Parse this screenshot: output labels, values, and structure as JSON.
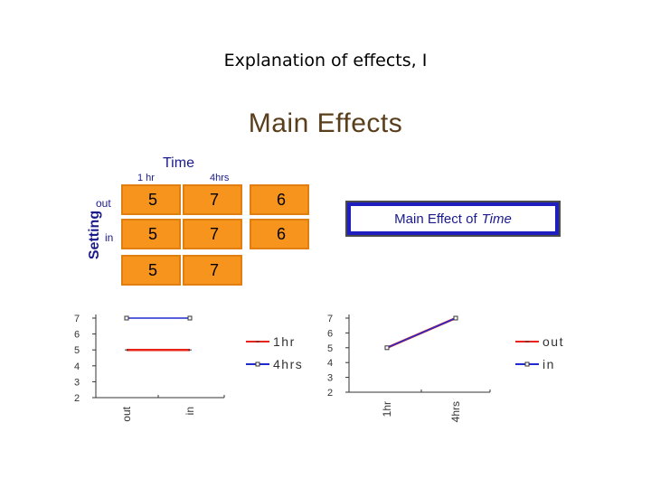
{
  "slide_title": "Explanation of effects, I",
  "main_heading": "Main Effects",
  "table": {
    "col_factor": "Time",
    "row_factor": "Setting",
    "col_labels": [
      "1 hr",
      "4hrs"
    ],
    "row_labels": [
      "out",
      "in"
    ],
    "cells": [
      [
        "5",
        "7",
        "6"
      ],
      [
        "5",
        "7",
        "6"
      ],
      [
        "5",
        "7",
        ""
      ]
    ],
    "cell_color": "#f7941d"
  },
  "callout": {
    "prefix": "Main Effect of",
    "emphasis": "Time"
  },
  "chart_data": [
    {
      "type": "line",
      "categories": [
        "out",
        "in"
      ],
      "series": [
        {
          "name": "1hr",
          "values": [
            5,
            5
          ],
          "color": "#e8231a"
        },
        {
          "name": "4hrs",
          "values": [
            7,
            7
          ],
          "color": "#1f2bd1"
        }
      ],
      "ylim": [
        2,
        7
      ],
      "yticks": [
        "7",
        "6",
        "5",
        "4",
        "3",
        "2"
      ],
      "legend": "right"
    },
    {
      "type": "line",
      "categories": [
        "1hr",
        "4hrs"
      ],
      "series": [
        {
          "name": "out",
          "values": [
            5,
            7
          ],
          "color": "#e8231a"
        },
        {
          "name": "in",
          "values": [
            5,
            7
          ],
          "color": "#1f2bd1"
        }
      ],
      "ylim": [
        2,
        7
      ],
      "yticks": [
        "7",
        "6",
        "5",
        "4",
        "3",
        "2"
      ],
      "legend": "right"
    }
  ]
}
